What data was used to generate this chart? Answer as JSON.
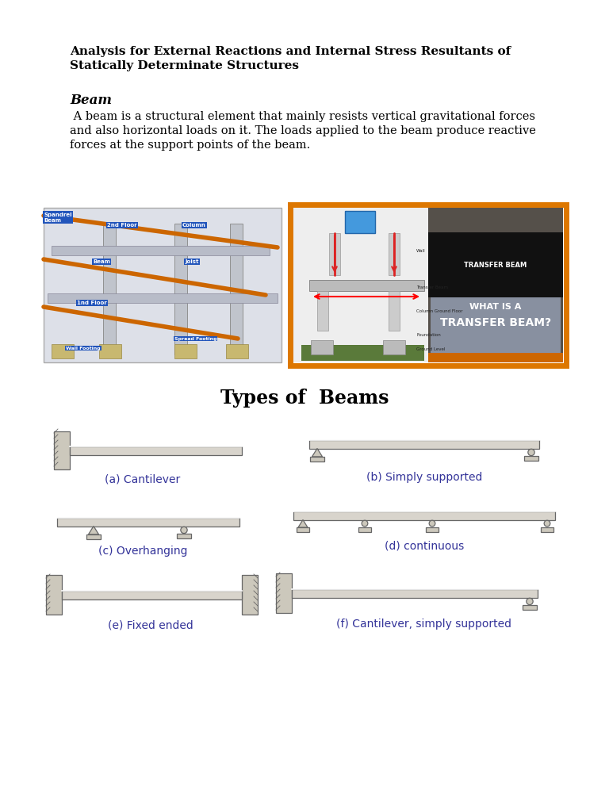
{
  "title_line1": "Analysis for External Reactions and Internal Stress Resultants of",
  "title_line2": "Statically Determinate Structures",
  "section_heading": "Beam",
  "body_text_line1": " A beam is a structural element that mainly resists vertical gravitational forces",
  "body_text_line2": "and also horizontal loads on it. The loads applied to the beam produce reactive",
  "body_text_line3": "forces at the support points of the beam.",
  "types_title": "Types of  Beams",
  "beam_labels": [
    "(a) Cantilever",
    "(b) Simply supported",
    "(c) Overhanging",
    "(d) continuous",
    "(e) Fixed ended",
    "(f) Cantilever, simply supported"
  ],
  "bg_color": "#ffffff",
  "beam_color": "#d8d4cc",
  "beam_outline": "#666666",
  "wall_color": "#ccc8bc",
  "text_color": "#000000",
  "label_color": "#333399",
  "blue_box_color": "#2255bb",
  "orange_color": "#cc6600",
  "orange_border_color": "#dd7700"
}
